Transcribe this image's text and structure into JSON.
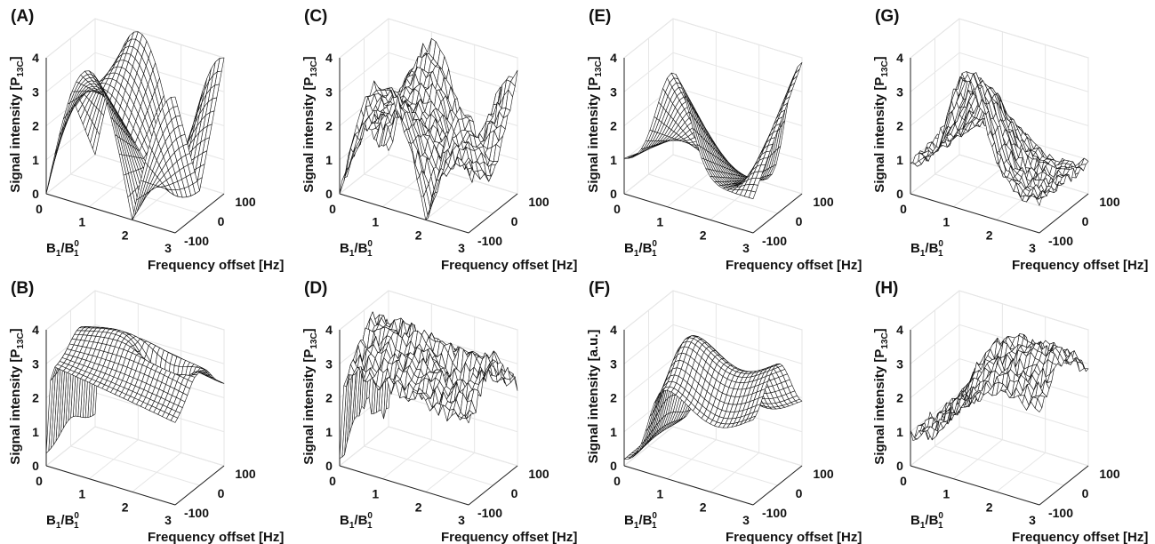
{
  "figure": {
    "panels": [
      {
        "id": "A",
        "label": "(A)",
        "row": 0,
        "col": 0,
        "profile": "A"
      },
      {
        "id": "C",
        "label": "(C)",
        "row": 0,
        "col": 1,
        "profile": "C"
      },
      {
        "id": "E",
        "label": "(E)",
        "row": 0,
        "col": 2,
        "profile": "E"
      },
      {
        "id": "G",
        "label": "(G)",
        "row": 0,
        "col": 3,
        "profile": "G"
      },
      {
        "id": "B",
        "label": "(B)",
        "row": 1,
        "col": 0,
        "profile": "B"
      },
      {
        "id": "D",
        "label": "(D)",
        "row": 1,
        "col": 1,
        "profile": "D"
      },
      {
        "id": "F",
        "label": "(F)",
        "row": 1,
        "col": 2,
        "profile": "F"
      },
      {
        "id": "H",
        "label": "(H)",
        "row": 1,
        "col": 3,
        "profile": "H"
      }
    ]
  },
  "chart_data": [
    {
      "panel": "(A)",
      "type": "surface",
      "zlabel_main": "Signal intensity [P",
      "zlabel_sub": "13C",
      "zlabel_close": "]",
      "xlabel_main": "B",
      "xlabel_sub": "1",
      "xlabel_mid": "/B",
      "xlabel_sup": "0",
      "xlabel_sub2": "1",
      "ylabel": "Frequency offset [Hz]",
      "xlim": [
        0,
        3
      ],
      "ylim": [
        -100,
        100
      ],
      "zlim": [
        0,
        4
      ],
      "xticks": [
        "0",
        "1",
        "2",
        "3"
      ],
      "yticks": [
        "-100",
        "0",
        "100"
      ],
      "zticks": [
        "0",
        "1",
        "2",
        "3",
        "4"
      ],
      "noise": 0
    },
    {
      "panel": "(C)",
      "type": "surface",
      "zlabel_main": "Signal intensity [P",
      "zlabel_sub": "13C",
      "zlabel_close": "]",
      "xlabel_main": "B",
      "xlabel_sub": "1",
      "xlabel_mid": "/B",
      "xlabel_sup": "0",
      "xlabel_sub2": "1",
      "ylabel": "Frequency offset [Hz]",
      "xlim": [
        0,
        3
      ],
      "ylim": [
        -100,
        100
      ],
      "zlim": [
        0,
        4
      ],
      "xticks": [
        "0",
        "1",
        "2",
        "3"
      ],
      "yticks": [
        "-100",
        "0",
        "100"
      ],
      "zticks": [
        "0",
        "1",
        "2",
        "3",
        "4"
      ],
      "noise": 0.18
    },
    {
      "panel": "(E)",
      "type": "surface",
      "zlabel_main": "Signal intensity [P",
      "zlabel_sub": "13C",
      "zlabel_close": "]",
      "xlabel_main": "B",
      "xlabel_sub": "1",
      "xlabel_mid": "/B",
      "xlabel_sup": "0",
      "xlabel_sub2": "1",
      "ylabel": "Frequency offset [Hz]",
      "xlim": [
        0,
        3
      ],
      "ylim": [
        -100,
        100
      ],
      "zlim": [
        0,
        4
      ],
      "xticks": [
        "0",
        "1",
        "2",
        "3"
      ],
      "yticks": [
        "-100",
        "0",
        "100"
      ],
      "zticks": [
        "0",
        "1",
        "2",
        "3",
        "4"
      ],
      "noise": 0
    },
    {
      "panel": "(G)",
      "type": "surface",
      "zlabel_main": "Signal intensity [P",
      "zlabel_sub": "13C",
      "zlabel_close": "]",
      "xlabel_main": "B",
      "xlabel_sub": "1",
      "xlabel_mid": "/B",
      "xlabel_sup": "0",
      "xlabel_sub2": "1",
      "ylabel": "Frequency offset [Hz]",
      "xlim": [
        0,
        3
      ],
      "ylim": [
        -100,
        100
      ],
      "zlim": [
        0,
        4
      ],
      "xticks": [
        "0",
        "1",
        "2",
        "3"
      ],
      "yticks": [
        "-100",
        "0",
        "100"
      ],
      "zticks": [
        "0",
        "1",
        "2",
        "3",
        "4"
      ],
      "noise": 0.15
    },
    {
      "panel": "(B)",
      "type": "surface",
      "zlabel_main": "Signal intensity [P",
      "zlabel_sub": "13C",
      "zlabel_close": "]",
      "xlabel_main": "B",
      "xlabel_sub": "1",
      "xlabel_mid": "/B",
      "xlabel_sup": "0",
      "xlabel_sub2": "1",
      "ylabel": "Frequency offset [Hz]",
      "xlim": [
        0,
        3
      ],
      "ylim": [
        -100,
        100
      ],
      "zlim": [
        0,
        4
      ],
      "xticks": [
        "0",
        "1",
        "2",
        "3"
      ],
      "yticks": [
        "-100",
        "0",
        "100"
      ],
      "zticks": [
        "0",
        "1",
        "2",
        "3",
        "4"
      ],
      "noise": 0
    },
    {
      "panel": "(D)",
      "type": "surface",
      "zlabel_main": "Signal intensity [P",
      "zlabel_sub": "13C",
      "zlabel_close": "]",
      "xlabel_main": "B",
      "xlabel_sub": "1",
      "xlabel_mid": "/B",
      "xlabel_sup": "0",
      "xlabel_sub2": "1",
      "ylabel": "Frequency offset [Hz]",
      "xlim": [
        0,
        3
      ],
      "ylim": [
        -100,
        100
      ],
      "zlim": [
        0,
        4
      ],
      "xticks": [
        "0",
        "1",
        "2",
        "3"
      ],
      "yticks": [
        "-100",
        "0",
        "100"
      ],
      "zticks": [
        "0",
        "1",
        "2",
        "3",
        "4"
      ],
      "noise": 0.22
    },
    {
      "panel": "(F)",
      "type": "surface",
      "zlabel_main": "Signal intensity [a.u.]",
      "zlabel_sub": "",
      "zlabel_close": "",
      "xlabel_main": "B",
      "xlabel_sub": "1",
      "xlabel_mid": "/B",
      "xlabel_sup": "0",
      "xlabel_sub2": "1",
      "ylabel": "Frequency offset [Hz]",
      "xlim": [
        0,
        3
      ],
      "ylim": [
        -100,
        100
      ],
      "zlim": [
        0,
        4
      ],
      "xticks": [
        "0",
        "1",
        "2",
        "3"
      ],
      "yticks": [
        "-100",
        "0",
        "100"
      ],
      "zticks": [
        "0",
        "1",
        "2",
        "3",
        "4"
      ],
      "noise": 0
    },
    {
      "panel": "(H)",
      "type": "surface",
      "zlabel_main": "Signal intensity [P",
      "zlabel_sub": "13C",
      "zlabel_close": "]",
      "xlabel_main": "B",
      "xlabel_sub": "1",
      "xlabel_mid": "/B",
      "xlabel_sup": "0",
      "xlabel_sub2": "1",
      "ylabel": "Frequency offset [Hz]",
      "xlim": [
        0,
        3
      ],
      "ylim": [
        -100,
        100
      ],
      "zlim": [
        0,
        4
      ],
      "xticks": [
        "0",
        "1",
        "2",
        "3"
      ],
      "yticks": [
        "-100",
        "0",
        "100"
      ],
      "zticks": [
        "0",
        "1",
        "2",
        "3",
        "4"
      ],
      "noise": 0.2
    }
  ]
}
